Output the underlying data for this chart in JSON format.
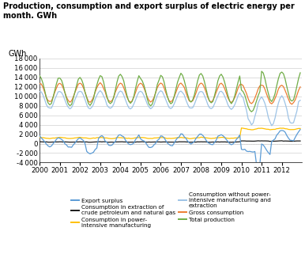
{
  "title": "Production, consumption and export surplus of electric energy per\nmonth. GWh",
  "ylabel": "GWh",
  "ylim": [
    -4000,
    18000
  ],
  "yticks": [
    -4000,
    -2000,
    0,
    2000,
    4000,
    6000,
    8000,
    10000,
    12000,
    14000,
    16000,
    18000
  ],
  "colors": {
    "export_surplus": "#5b9bd5",
    "consumption_extraction": "#1a1a1a",
    "consumption_power_intensive": "#ffc000",
    "consumption_without_power": "#9dc3e6",
    "gross_consumption": "#ed7d31",
    "total_production": "#70ad47"
  },
  "legend_labels": [
    "Export surplus",
    "Consumption in extraction of\ncrude petroleum and natural gas",
    "Consumption in power-\nintensive manufacturing",
    "Consumption without power-\nintensive manufacturing and\nextraction",
    "Gross consumption",
    "Total production"
  ],
  "legend_color_keys": [
    "export_surplus",
    "consumption_extraction",
    "consumption_power_intensive",
    "consumption_without_power",
    "gross_consumption",
    "total_production"
  ]
}
